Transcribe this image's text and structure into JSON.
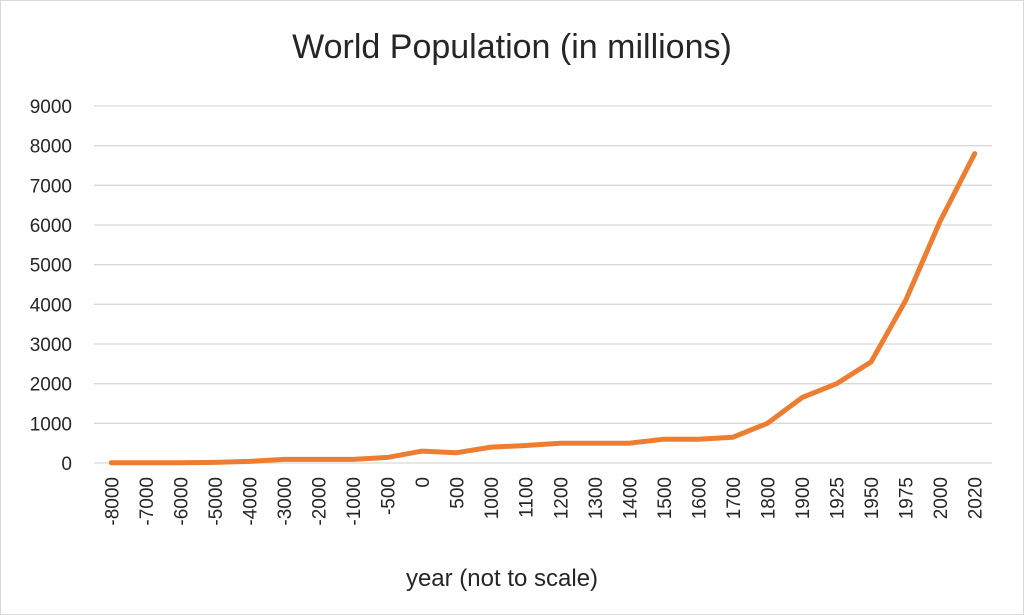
{
  "chart_data": {
    "type": "line",
    "title": "World Population (in millions)",
    "xlabel": "year (not to scale)",
    "ylabel": "",
    "ylim": [
      0,
      9000
    ],
    "yticks": [
      "0",
      "1000",
      "2000",
      "3000",
      "4000",
      "5000",
      "6000",
      "7000",
      "8000",
      "9000"
    ],
    "grid": true,
    "legend": "none",
    "categories": [
      "-8000",
      "-7000",
      "-6000",
      "-5000",
      "-4000",
      "-3000",
      "-2000",
      "-1000",
      "-500",
      "0",
      "500",
      "1000",
      "1100",
      "1200",
      "1300",
      "1400",
      "1500",
      "1600",
      "1700",
      "1800",
      "1900",
      "1925",
      "1950",
      "1975",
      "2000",
      "2020"
    ],
    "series": [
      {
        "color": "#ed7d31",
        "values": [
          5,
          5,
          5,
          15,
          40,
          90,
          90,
          90,
          140,
          300,
          260,
          400,
          440,
          500,
          500,
          500,
          600,
          600,
          650,
          1000,
          1650,
          2000,
          2550,
          4100,
          6100,
          7800
        ]
      }
    ]
  }
}
